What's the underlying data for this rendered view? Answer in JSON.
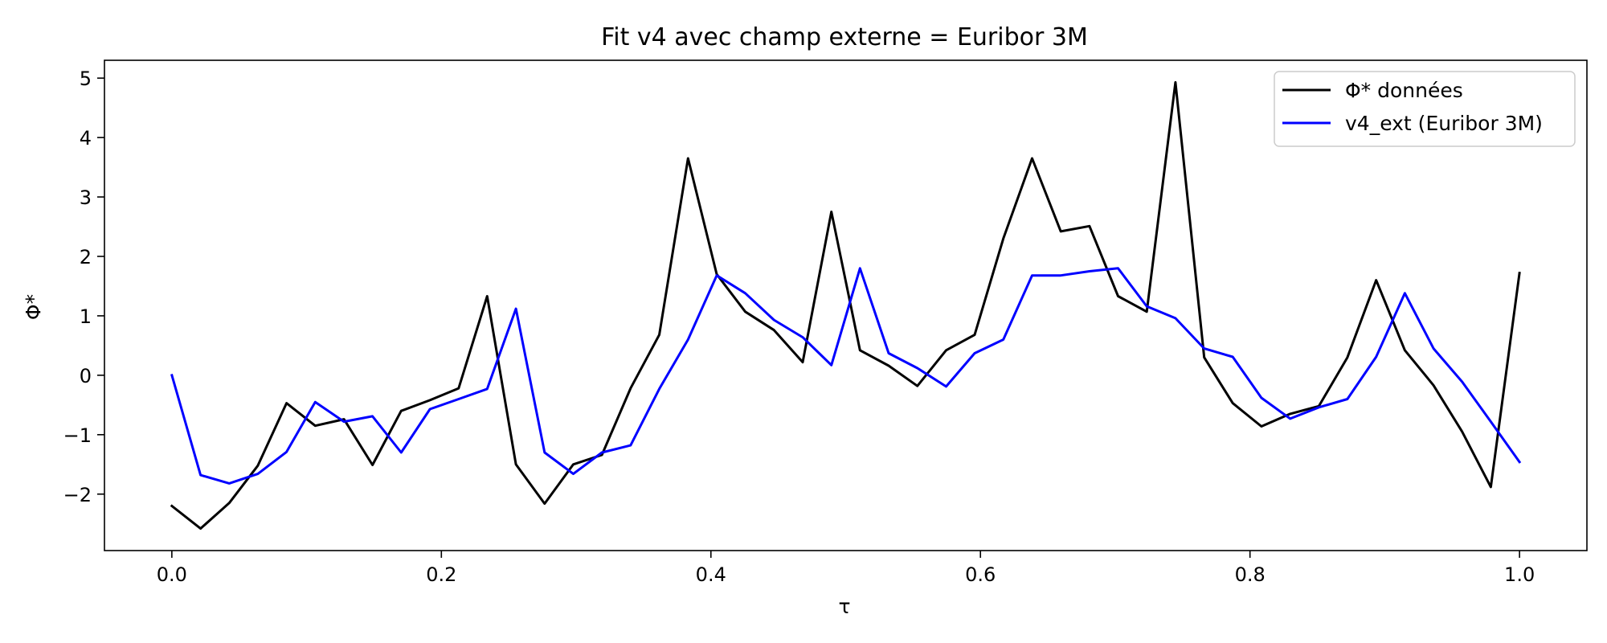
{
  "chart_data": {
    "type": "line",
    "title": "Fit v4 avec champ externe = Euribor 3M",
    "xlabel": "τ",
    "ylabel": "Φ*",
    "xlim": [
      -0.05,
      1.05
    ],
    "ylim": [
      -2.95,
      5.3
    ],
    "xticks": [
      0.0,
      0.2,
      0.4,
      0.6,
      0.8,
      1.0
    ],
    "xtick_labels": [
      "0.0",
      "0.2",
      "0.4",
      "0.6",
      "0.8",
      "1.0"
    ],
    "yticks": [
      -2,
      -1,
      0,
      1,
      2,
      3,
      4,
      5
    ],
    "ytick_labels": [
      "−2",
      "−1",
      "0",
      "1",
      "2",
      "3",
      "4",
      "5"
    ],
    "grid": false,
    "legend_position": "top-right",
    "x": [
      0.0,
      0.0213,
      0.0426,
      0.0638,
      0.0851,
      0.1064,
      0.1277,
      0.1489,
      0.1702,
      0.1915,
      0.2128,
      0.234,
      0.2553,
      0.2766,
      0.2979,
      0.3191,
      0.3404,
      0.3617,
      0.383,
      0.4043,
      0.4255,
      0.4468,
      0.4681,
      0.4894,
      0.5106,
      0.5319,
      0.5532,
      0.5745,
      0.5957,
      0.617,
      0.6383,
      0.6596,
      0.6809,
      0.7021,
      0.7234,
      0.7447,
      0.766,
      0.7872,
      0.8085,
      0.8298,
      0.8511,
      0.8723,
      0.8936,
      0.9149,
      0.9362,
      0.9574,
      0.9787,
      1.0
    ],
    "series": [
      {
        "name": "Φ* données",
        "color": "#000000",
        "values": [
          -2.2,
          -2.58,
          -2.15,
          -1.52,
          -0.47,
          -0.85,
          -0.74,
          -1.51,
          -0.6,
          -0.42,
          -0.22,
          1.33,
          -1.5,
          -2.16,
          -1.5,
          -1.34,
          -0.22,
          0.68,
          3.65,
          1.7,
          1.07,
          0.76,
          0.22,
          2.75,
          0.42,
          0.16,
          -0.18,
          0.42,
          0.68,
          2.3,
          3.65,
          2.42,
          2.51,
          1.33,
          1.07,
          4.93,
          0.3,
          -0.47,
          -0.86,
          -0.65,
          -0.52,
          0.3,
          1.6,
          0.42,
          -0.17,
          -0.95,
          -1.88,
          1.72
        ]
      },
      {
        "name": "v4_ext (Euribor 3M)",
        "color": "#0000ff",
        "values": [
          0.0,
          -1.68,
          -1.82,
          -1.66,
          -1.29,
          -0.45,
          -0.78,
          -0.69,
          -1.3,
          -0.57,
          -0.4,
          -0.23,
          1.12,
          -1.3,
          -1.66,
          -1.3,
          -1.18,
          -0.23,
          0.6,
          1.68,
          1.38,
          0.93,
          0.64,
          0.17,
          1.8,
          0.37,
          0.12,
          -0.19,
          0.37,
          0.6,
          1.68,
          1.68,
          1.75,
          1.8,
          1.16,
          0.96,
          0.45,
          0.31,
          -0.38,
          -0.73,
          -0.54,
          -0.4,
          0.31,
          1.38,
          0.45,
          -0.11,
          -0.78,
          -1.46
        ]
      }
    ]
  }
}
